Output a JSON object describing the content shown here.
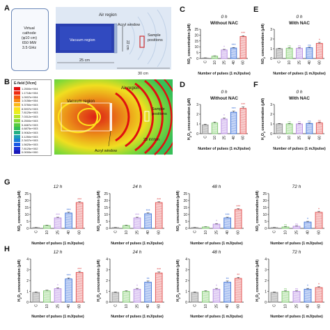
{
  "panel_letters": [
    "A",
    "B",
    "C",
    "D",
    "E",
    "F",
    "G",
    "H"
  ],
  "panel_a": {
    "cathode_label": [
      "Virtual",
      "cathode",
      "(φ10 cm)",
      "650 MW",
      "3.5 GHz"
    ],
    "air_region": "Air region",
    "vacuum_region": "Vacuum region",
    "acryl_window": "Acryl window",
    "sample_positions": [
      "Sample",
      "positions"
    ],
    "dim_22cm": "22 cm",
    "dim_25cm": "25 cm",
    "dim_30cm": "30 cm"
  },
  "panel_b": {
    "legend_title": "E-field [V/cm]",
    "legend_entries": [
      "1.2500e+004",
      "1.1718e+004",
      "1.0937e+004",
      "1.0156e+004",
      "9.3750e+003",
      "8.5937e+003",
      "7.8125e+003",
      "7.0312e+003",
      "6.2500e+003",
      "5.4687e+003",
      "4.6875e+003",
      "3.9062e+003",
      "3.1250e+003",
      "2.3437e+003",
      "1.5625e+003",
      "7.8125e+002",
      "0.0000e+000"
    ],
    "legend_colors": [
      "#e01010",
      "#ee2a10",
      "#f55a12",
      "#f88a14",
      "#fbb818",
      "#fde01c",
      "#e8f020",
      "#b8e62a",
      "#86da34",
      "#58cc40",
      "#34be58",
      "#22b084",
      "#1c9eb4",
      "#1a7ed8",
      "#1a5ae6",
      "#1c34d6",
      "#1a18b8"
    ],
    "vacuum_region": "Vacuum region",
    "air_region": "Air region",
    "sample_positions": [
      "Sample",
      "positions"
    ],
    "field_value": "23 kV/cm",
    "acryl_window": "Acryl window"
  },
  "chart_data": [
    {
      "id": "C",
      "type": "bar",
      "title": "0 h",
      "subtitle": "Without NAC",
      "ylabel_main": "NO",
      "ylabel_sub": "2",
      "ylabel_rest": " concentration (μM)",
      "xlabel": "Number of pulses (1 mJ/pulse)",
      "categories": [
        "C",
        "10",
        "25",
        "40",
        "60"
      ],
      "values": [
        0.4,
        2.0,
        7.3,
        8.9,
        18.8
      ],
      "errors": [
        0.2,
        0.3,
        0.5,
        0.5,
        0.7
      ],
      "sig": [
        "",
        "",
        "*",
        "***",
        "***"
      ],
      "ylim": [
        0,
        25
      ],
      "yticks": [
        0,
        5,
        10,
        15,
        20,
        25
      ]
    },
    {
      "id": "D",
      "type": "bar",
      "title": "0 h",
      "subtitle": "Without NAC",
      "ylabel_main": "H",
      "ylabel_sub": "2",
      "ylabel_rest": "O",
      "ylabel_sub2": "2",
      "ylabel_rest2": " concentration (μM)",
      "xlabel": "Number of pulses (1 mJ/pulse)",
      "categories": [
        "C",
        "10",
        "25",
        "40",
        "60"
      ],
      "values": [
        0.9,
        1.1,
        1.5,
        2.2,
        2.6
      ],
      "errors": [
        0.08,
        0.1,
        0.1,
        0.12,
        0.15
      ],
      "sig": [
        "",
        "",
        "*",
        "***",
        "***"
      ],
      "ylim": [
        0,
        3
      ],
      "yticks": [
        0,
        1,
        2,
        3
      ]
    },
    {
      "id": "E",
      "type": "bar",
      "title": "0 h",
      "subtitle": "With NAC",
      "ylabel_main": "NO",
      "ylabel_sub": "2",
      "ylabel_rest": " concentration (μM)",
      "xlabel": "Number of pulses (1 mJ/pulse)",
      "categories": [
        "C",
        "10",
        "25",
        "40",
        "60"
      ],
      "values": [
        1.0,
        1.05,
        1.05,
        1.1,
        1.55
      ],
      "errors": [
        0.05,
        0.06,
        0.06,
        0.07,
        0.1
      ],
      "sig": [
        "",
        "ns",
        "ns",
        "ns",
        "*"
      ],
      "ylim": [
        0,
        3
      ],
      "yticks": [
        0,
        1,
        2,
        3
      ]
    },
    {
      "id": "F",
      "type": "bar",
      "title": "0 h",
      "subtitle": "With NAC",
      "ylabel_main": "H",
      "ylabel_sub": "2",
      "ylabel_rest": "O",
      "ylabel_sub2": "2",
      "ylabel_rest2": " concentration (μM)",
      "xlabel": "Number of pulses (1 mJ/pulse)",
      "categories": [
        "C",
        "10",
        "25",
        "40",
        "60"
      ],
      "values": [
        1.0,
        1.0,
        1.0,
        1.05,
        1.1
      ],
      "errors": [
        0.05,
        0.05,
        0.05,
        0.06,
        0.06
      ],
      "sig": [
        "",
        "ns",
        "ns",
        "ns",
        "ns"
      ],
      "ylim": [
        0,
        3
      ],
      "yticks": [
        0,
        1,
        2,
        3
      ]
    },
    {
      "id": "G1",
      "type": "bar",
      "title": "12 h",
      "ylabel_main": "NO",
      "ylabel_sub": "2",
      "ylabel_rest": " concentration (μM)",
      "xlabel": "Number of pulses (1 mJ/pulse)",
      "categories": [
        "C",
        "10",
        "25",
        "40",
        "60"
      ],
      "values": [
        0.5,
        2.0,
        7.5,
        11.0,
        18.5
      ],
      "errors": [
        0.2,
        0.3,
        0.5,
        0.6,
        0.6
      ],
      "sig": [
        "",
        "",
        "***",
        "***",
        "***"
      ],
      "ylim": [
        0,
        25
      ],
      "yticks": [
        0,
        5,
        10,
        15,
        20,
        25
      ]
    },
    {
      "id": "G2",
      "type": "bar",
      "title": "24 h",
      "ylabel_main": "NO",
      "ylabel_sub": "2",
      "ylabel_rest": " concentration (μM)",
      "xlabel": "Number of pulses (1 mJ/pulse)",
      "categories": [
        "C",
        "10",
        "25",
        "40",
        "60"
      ],
      "values": [
        0.5,
        2.0,
        7.5,
        10.5,
        18.5
      ],
      "errors": [
        0.2,
        0.3,
        0.5,
        0.6,
        0.6
      ],
      "sig": [
        "",
        "",
        "***",
        "***",
        "***"
      ],
      "ylim": [
        0,
        25
      ],
      "yticks": [
        0,
        5,
        10,
        15,
        20,
        25
      ]
    },
    {
      "id": "G3",
      "type": "bar",
      "title": "48 h",
      "ylabel_main": "NO",
      "ylabel_sub": "2",
      "ylabel_rest": " concentration (μM)",
      "xlabel": "Number of pulses (1 mJ/pulse)",
      "categories": [
        "C",
        "10",
        "25",
        "40",
        "60"
      ],
      "values": [
        0.5,
        1.0,
        3.0,
        7.5,
        13.5
      ],
      "errors": [
        0.2,
        0.2,
        0.4,
        0.5,
        0.6
      ],
      "sig": [
        "",
        "",
        "*",
        "***",
        "***"
      ],
      "ylim": [
        0,
        25
      ],
      "yticks": [
        0,
        5,
        10,
        15,
        20,
        25
      ]
    },
    {
      "id": "G4",
      "type": "bar",
      "title": "72 h",
      "ylabel_main": "NO",
      "ylabel_sub": "2",
      "ylabel_rest": " concentration (μM)",
      "xlabel": "Number of pulses (1 mJ/pulse)",
      "categories": [
        "C",
        "10",
        "25",
        "40",
        "60"
      ],
      "values": [
        0.5,
        1.0,
        1.5,
        4.5,
        11.5
      ],
      "errors": [
        0.2,
        0.3,
        0.3,
        0.5,
        0.6
      ],
      "sig": [
        "",
        "ns",
        "ns",
        "*",
        "*"
      ],
      "ylim": [
        0,
        25
      ],
      "yticks": [
        0,
        5,
        10,
        15,
        20,
        25
      ]
    },
    {
      "id": "H1",
      "type": "bar",
      "title": "12 h",
      "ylabel_main": "H",
      "ylabel_sub": "2",
      "ylabel_rest": "O",
      "ylabel_sub2": "2",
      "ylabel_rest2": " concentration (μM)",
      "xlabel": "Number of pulses (1 mJ/pulse)",
      "categories": [
        "C",
        "10",
        "25",
        "40",
        "60"
      ],
      "values": [
        0.9,
        1.05,
        1.25,
        2.15,
        2.75
      ],
      "errors": [
        0.05,
        0.06,
        0.08,
        0.1,
        0.1
      ],
      "sig": [
        "",
        "",
        "*",
        "***",
        "***"
      ],
      "ylim": [
        0,
        4
      ],
      "yticks": [
        0,
        1,
        2,
        3,
        4
      ]
    },
    {
      "id": "H2",
      "type": "bar",
      "title": "24 h",
      "ylabel_main": "H",
      "ylabel_sub": "2",
      "ylabel_rest": "O",
      "ylabel_sub2": "2",
      "ylabel_rest2": " concentration (μM)",
      "xlabel": "Number of pulses (1 mJ/pulse)",
      "categories": [
        "C",
        "10",
        "25",
        "40",
        "60"
      ],
      "values": [
        0.9,
        1.0,
        1.2,
        1.85,
        2.7
      ],
      "errors": [
        0.05,
        0.06,
        0.08,
        0.1,
        0.1
      ],
      "sig": [
        "",
        "",
        "*",
        "**",
        "***"
      ],
      "ylim": [
        0,
        4
      ],
      "yticks": [
        0,
        1,
        2,
        3,
        4
      ]
    },
    {
      "id": "H3",
      "type": "bar",
      "title": "48 h",
      "ylabel_main": "H",
      "ylabel_sub": "2",
      "ylabel_rest": "O",
      "ylabel_sub2": "2",
      "ylabel_rest2": " concentration (μM)",
      "xlabel": "Number of pulses (1 mJ/pulse)",
      "categories": [
        "C",
        "10",
        "25",
        "40",
        "60"
      ],
      "values": [
        0.9,
        1.0,
        1.2,
        1.85,
        2.2
      ],
      "errors": [
        0.05,
        0.06,
        0.08,
        0.1,
        0.1
      ],
      "sig": [
        "",
        "",
        "*",
        "**",
        "**"
      ],
      "ylim": [
        0,
        4
      ],
      "yticks": [
        0,
        1,
        2,
        3,
        4
      ]
    },
    {
      "id": "H4",
      "type": "bar",
      "title": "72 h",
      "ylabel_main": "H",
      "ylabel_sub": "2",
      "ylabel_rest": "O",
      "ylabel_sub2": "2",
      "ylabel_rest2": " concentration (μM)",
      "xlabel": "Number of pulses (1 mJ/pulse)",
      "categories": [
        "C",
        "10",
        "25",
        "40",
        "60"
      ],
      "values": [
        0.9,
        1.0,
        1.0,
        1.2,
        1.35
      ],
      "errors": [
        0.05,
        0.06,
        0.06,
        0.08,
        0.08
      ],
      "sig": [
        "",
        "ns",
        "ns",
        "*",
        "*"
      ],
      "ylim": [
        0,
        4
      ],
      "yticks": [
        0,
        1,
        2,
        3,
        4
      ]
    }
  ],
  "bar_colors": [
    "#8a8a8a",
    "#7ec86e",
    "#b58ae0",
    "#3a6fd8",
    "#e04a4a"
  ],
  "bar_fills": [
    "#d4d4d4",
    "#d6efcf",
    "#e7d8f6",
    "#c4d4f5",
    "#f7cccc"
  ]
}
